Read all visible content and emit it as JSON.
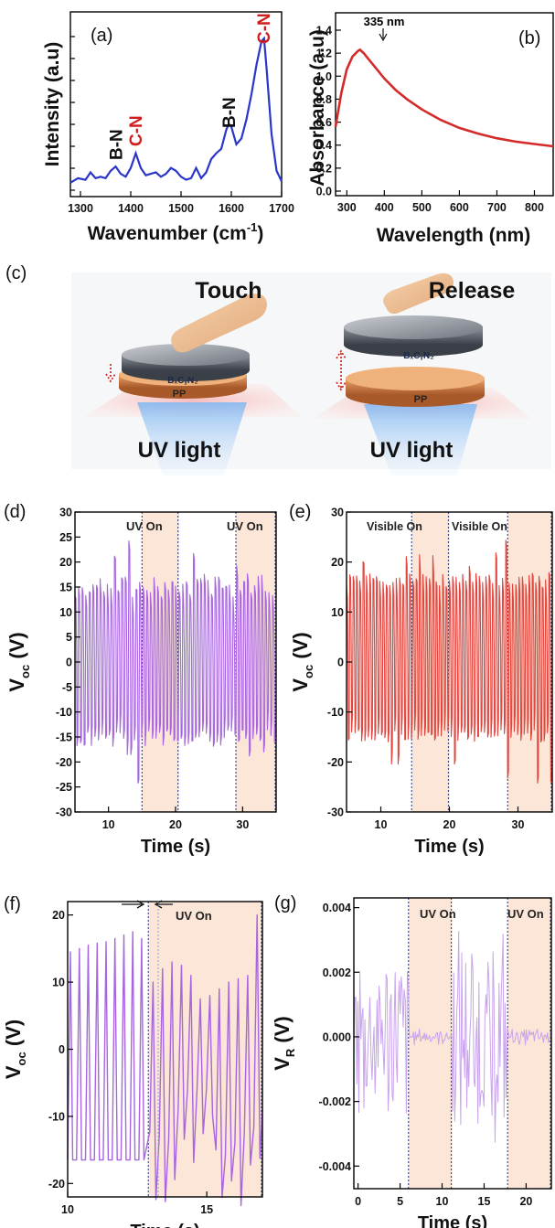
{
  "colors": {
    "blue": "#2a35c9",
    "red_curve": "#d42a2a",
    "red_label": "#d01e1e",
    "purple": "#a765e0",
    "red_series": "#e2453e",
    "shade": "#fbe6d8",
    "light_purple": "#c9a3ec"
  },
  "chart_data": [
    {
      "panel": "(a)",
      "type": "line",
      "xlabel": "Wavenumber (cm",
      "xlabel_sup": "-1",
      "xlabel_close": ")",
      "ylabel": "Intensity (a.u)",
      "xlim": [
        1280,
        1700
      ],
      "xticks": [
        "1300",
        "1400",
        "1500",
        "1600",
        "1700"
      ],
      "x": [
        1280,
        1295,
        1310,
        1320,
        1330,
        1340,
        1350,
        1360,
        1370,
        1380,
        1390,
        1400,
        1410,
        1420,
        1430,
        1440,
        1450,
        1460,
        1470,
        1480,
        1490,
        1500,
        1510,
        1520,
        1530,
        1540,
        1550,
        1560,
        1570,
        1580,
        1590,
        1595,
        1600,
        1610,
        1620,
        1630,
        1640,
        1650,
        1660,
        1665,
        1670,
        1680,
        1690,
        1700
      ],
      "values": [
        0.02,
        0.05,
        0.04,
        0.09,
        0.05,
        0.06,
        0.05,
        0.1,
        0.13,
        0.08,
        0.06,
        0.12,
        0.22,
        0.12,
        0.07,
        0.08,
        0.09,
        0.06,
        0.08,
        0.12,
        0.1,
        0.06,
        0.04,
        0.05,
        0.12,
        0.05,
        0.09,
        0.18,
        0.22,
        0.25,
        0.38,
        0.42,
        0.4,
        0.28,
        0.32,
        0.45,
        0.62,
        0.82,
        0.98,
        1.0,
        0.8,
        0.35,
        0.1,
        0.03
      ],
      "annotations": [
        {
          "text": "B-N",
          "x": 1372,
          "color": "black"
        },
        {
          "text": "C-N",
          "x": 1411,
          "color": "red"
        },
        {
          "text": "B-N",
          "x": 1596,
          "color": "black"
        },
        {
          "text": "C-N",
          "x": 1665,
          "color": "red"
        }
      ]
    },
    {
      "panel": "(b)",
      "type": "line",
      "xlabel": "Wavelength (nm)",
      "ylabel": "Absorbance (a.u)",
      "xlim": [
        270,
        850
      ],
      "ylim": [
        0,
        1.5
      ],
      "xticks": [
        "300",
        "400",
        "500",
        "600",
        "700",
        "800"
      ],
      "yticks": [
        "0.0",
        "0.2",
        "0.4",
        "0.6",
        "0.8",
        "1.0",
        "1.2",
        "1.4"
      ],
      "peak_label": "335 nm",
      "x": [
        270,
        285,
        300,
        315,
        330,
        335,
        345,
        360,
        380,
        400,
        430,
        460,
        500,
        550,
        600,
        650,
        700,
        750,
        800,
        850
      ],
      "values": [
        0.56,
        0.85,
        1.06,
        1.17,
        1.22,
        1.23,
        1.2,
        1.14,
        1.06,
        0.98,
        0.88,
        0.8,
        0.71,
        0.62,
        0.55,
        0.5,
        0.46,
        0.43,
        0.41,
        0.39
      ]
    },
    {
      "panel": "(d)",
      "type": "line",
      "xlabel": "Time (s)",
      "ylabel": "V",
      "ylabel_sub": "oc",
      "ylabel_unit": " (V)",
      "xlim": [
        5,
        35
      ],
      "ylim": [
        -30,
        30
      ],
      "xticks": [
        "10",
        "20",
        "30"
      ],
      "yticks": [
        "-30",
        "-25",
        "-20",
        "-15",
        "-10",
        "-5",
        "0",
        "5",
        "10",
        "15",
        "20",
        "25",
        "30"
      ],
      "shaded": [
        [
          15,
          20.5
        ],
        [
          29,
          35
        ]
      ],
      "shade_labels": [
        "UV On",
        "UV On"
      ],
      "n_cycles": 56,
      "amplitude_max": 17,
      "amplitude_min": -17
    },
    {
      "panel": "(e)",
      "type": "line",
      "xlabel": "Time (s)",
      "ylabel": "V",
      "ylabel_sub": "oc",
      "ylabel_unit": " (V)",
      "xlim": [
        5,
        35
      ],
      "ylim": [
        -30,
        30
      ],
      "xticks": [
        "10",
        "20",
        "30"
      ],
      "yticks": [
        "-30",
        "-20",
        "-10",
        "0",
        "10",
        "20",
        "30"
      ],
      "shaded": [
        [
          14.5,
          20
        ],
        [
          28.5,
          35
        ]
      ],
      "shade_labels": [
        "Visible On",
        "Visible On"
      ],
      "n_cycles": 62,
      "amplitude_max": 18,
      "amplitude_min": -16
    },
    {
      "panel": "(f)",
      "type": "line",
      "xlabel": "Time (s)",
      "ylabel": "V",
      "ylabel_sub": "oc",
      "ylabel_unit": " (V)",
      "xlim": [
        10,
        17
      ],
      "ylim": [
        -22,
        22
      ],
      "xticks": [
        "10",
        "15"
      ],
      "yticks": [
        "-20",
        "-10",
        "0",
        "10",
        "20"
      ],
      "shaded": [
        [
          12.9,
          17
        ]
      ],
      "shade_labels": [
        "UV On"
      ],
      "peaks_before": [
        14.5,
        15.0,
        15.5,
        15.8,
        16.0,
        16.5,
        17.0,
        17.5,
        16.5
      ],
      "peaks_after": [
        10.0,
        12.0,
        13.0,
        12.5,
        11.0,
        7.5,
        8.0,
        9.0,
        10.0,
        10.5,
        11.0,
        20.0
      ]
    },
    {
      "panel": "(g)",
      "type": "line",
      "xlabel": "Time (s)",
      "ylabel": "V",
      "ylabel_sub": "R",
      "ylabel_unit": " (V)",
      "xlim": [
        -0.5,
        23
      ],
      "ylim": [
        -0.0047,
        0.0043
      ],
      "xticks": [
        "0",
        "5",
        "10",
        "15",
        "20"
      ],
      "yticks": [
        "-0.004",
        "-0.002",
        "0.000",
        "0.002",
        "0.004"
      ],
      "shaded": [
        [
          6,
          11.2
        ],
        [
          17.8,
          23
        ]
      ],
      "shade_labels": [
        "UV On",
        "UV On"
      ]
    }
  ],
  "diagram": {
    "panel": "(c)",
    "left_label": "Touch",
    "right_label": "Release",
    "layer_top": "BₓCᵧN₂",
    "layer_bottom": "PP",
    "light_label": "UV light"
  }
}
